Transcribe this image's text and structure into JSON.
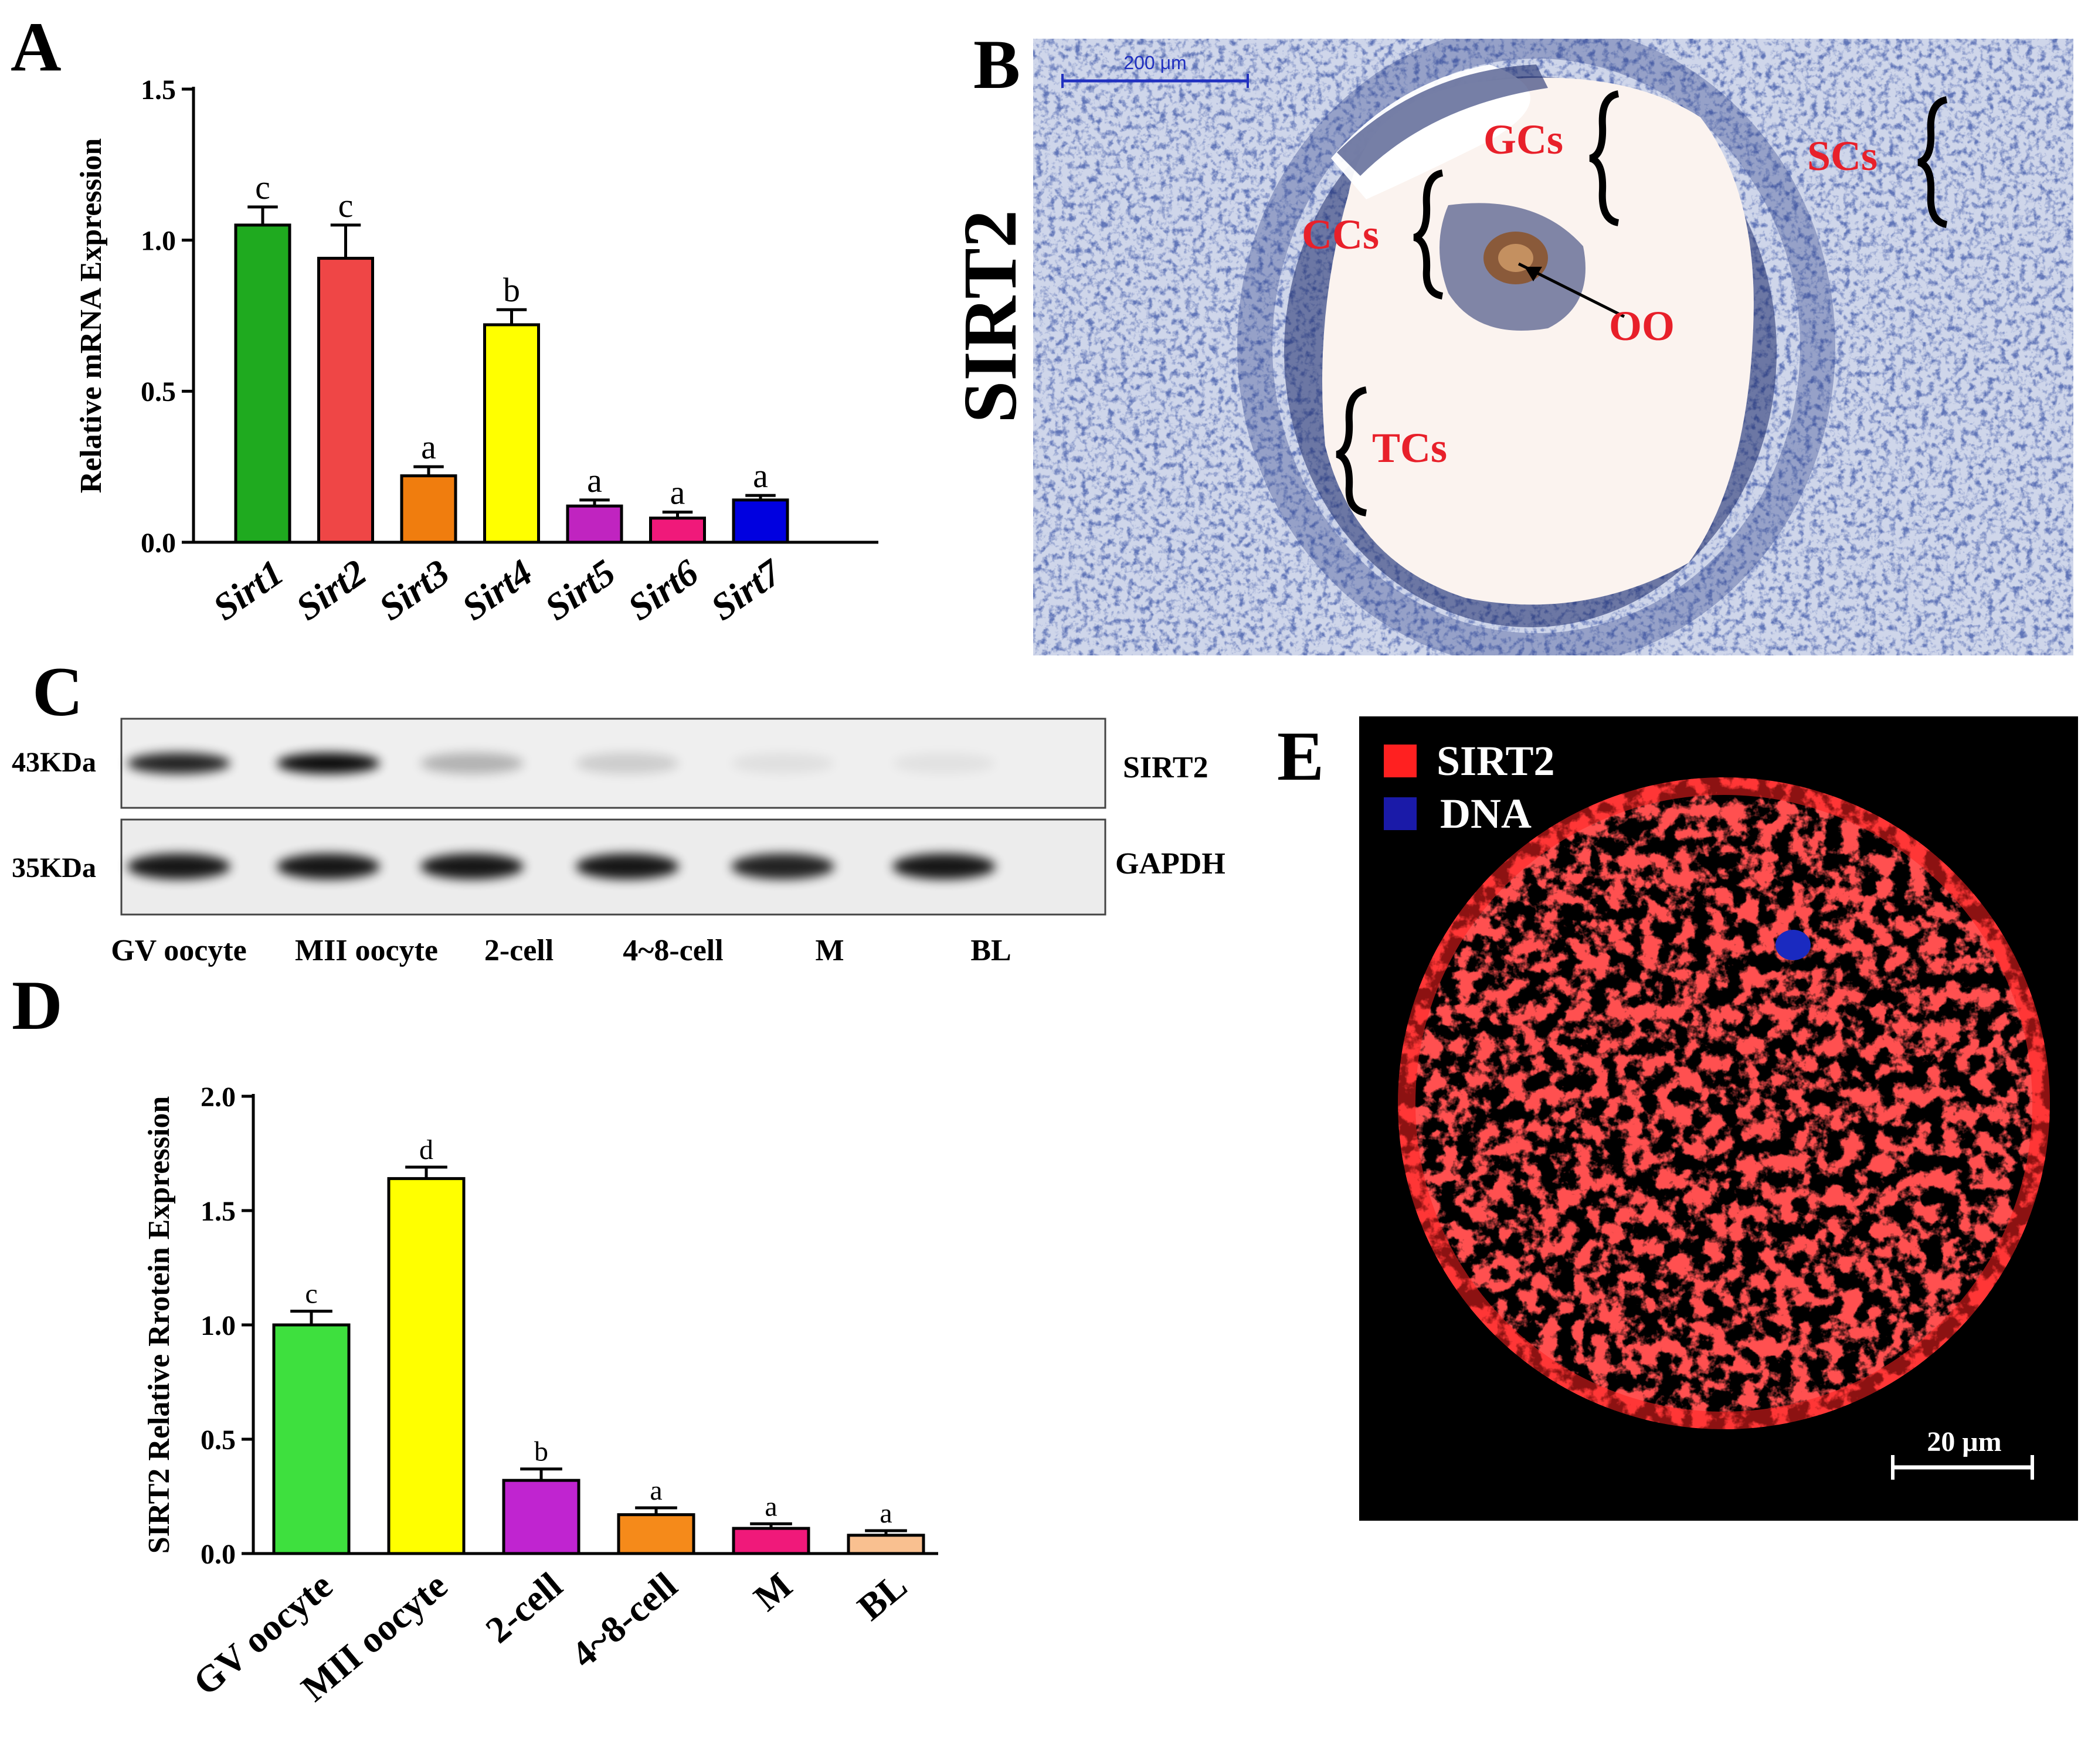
{
  "panels": {
    "a": {
      "letter": "A"
    },
    "b": {
      "letter": "B"
    },
    "c": {
      "letter": "C"
    },
    "d": {
      "letter": "D"
    },
    "e": {
      "letter": "E"
    }
  },
  "chart_data": [
    {
      "panel": "A",
      "type": "bar",
      "title": "",
      "xlabel": "",
      "ylabel": "Relative mRNA Expression",
      "categories": [
        "Sirt1",
        "Sirt2",
        "Sirt3",
        "Sirt4",
        "Sirt5",
        "Sirt6",
        "Sirt7"
      ],
      "values": [
        1.05,
        0.94,
        0.22,
        0.72,
        0.12,
        0.08,
        0.14
      ],
      "errors": [
        0.06,
        0.11,
        0.03,
        0.05,
        0.02,
        0.02,
        0.015
      ],
      "significance": [
        "c",
        "c",
        "a",
        "b",
        "a",
        "a",
        "a"
      ],
      "colors": [
        "#1faa1f",
        "#ef4646",
        "#f07d0e",
        "#ffff00",
        "#c024c0",
        "#f0197a",
        "#0000e0"
      ],
      "ylim": [
        0,
        1.5
      ],
      "yticks": [
        "0.0",
        "0.5",
        "1.0",
        "1.5"
      ],
      "grid": false
    },
    {
      "panel": "D",
      "type": "bar",
      "title": "",
      "xlabel": "",
      "ylabel": "SIRT2 Relative Rrotein Expression",
      "categories": [
        "GV oocyte",
        "MII oocyte",
        "2-cell",
        "4~8-cell",
        "M",
        "BL"
      ],
      "values": [
        1.0,
        1.64,
        0.32,
        0.17,
        0.11,
        0.08
      ],
      "errors": [
        0.06,
        0.05,
        0.05,
        0.03,
        0.02,
        0.02
      ],
      "significance": [
        "c",
        "d",
        "b",
        "a",
        "a",
        "a"
      ],
      "colors": [
        "#3ee03e",
        "#ffff00",
        "#c024d0",
        "#f58a1a",
        "#f0197a",
        "#f9c090"
      ],
      "ylim": [
        0,
        2.0
      ],
      "yticks": [
        "0.0",
        "0.5",
        "1.0",
        "1.5",
        "2.0"
      ],
      "grid": false
    }
  ],
  "histology": {
    "side_label": "SIRT2",
    "scale_bar": "200 μm",
    "labels": [
      "GCs",
      "SCs",
      "CCs",
      "OO",
      "TCs"
    ]
  },
  "blot": {
    "rows": [
      {
        "kda": "43KDa",
        "protein": "SIRT2",
        "intensities": [
          0.85,
          0.95,
          0.25,
          0.14,
          0.06,
          0.05
        ]
      },
      {
        "kda": "35KDa",
        "protein": "GAPDH",
        "intensities": [
          0.9,
          0.9,
          0.9,
          0.9,
          0.85,
          0.9
        ]
      }
    ],
    "lanes": [
      "GV oocyte",
      "MII oocyte",
      "2-cell",
      "4~8-cell",
      "M",
      "BL"
    ]
  },
  "fluorescence": {
    "legend": [
      {
        "label": "SIRT2",
        "color": "#ff2020"
      },
      {
        "label": "DNA",
        "color": "#1a1aa8"
      }
    ],
    "scale_bar": "20 μm"
  }
}
